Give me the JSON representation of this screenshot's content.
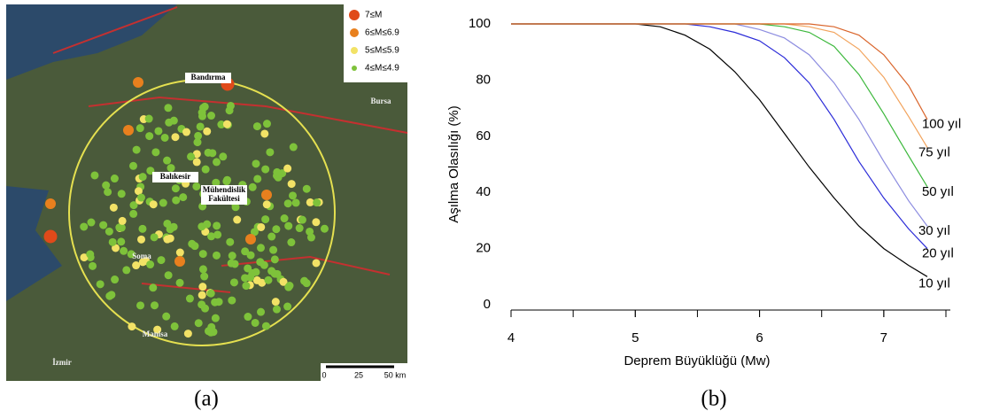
{
  "map": {
    "legend": [
      "7≤M",
      "6≤M≤6.9",
      "5≤M≤5.9",
      "4≤M≤4.9"
    ],
    "legend_colors": [
      "#e04a1a",
      "#e8801e",
      "#f2e266",
      "#7ec23a"
    ],
    "places": [
      "Bandırma",
      "Balıkesir",
      "Mühendislik",
      "Fakültesi",
      "Bursa",
      "Manisa",
      "İzmir",
      "Soma"
    ],
    "scale": [
      "0",
      "25",
      "50 km"
    ]
  },
  "captions": [
    "(a)",
    "(b)"
  ],
  "chart_data": {
    "type": "line",
    "x_label": "Deprem Büyüklüğü (Mw)",
    "y_label": "Aşılma Olasılığı (%)",
    "x": [
      4,
      4.5,
      5,
      5.2,
      5.4,
      5.6,
      5.8,
      6.0,
      6.2,
      6.4,
      6.6,
      6.8,
      7.0,
      7.2,
      7.35
    ],
    "xlim": [
      4,
      7.5
    ],
    "xticks": [
      4,
      5,
      6,
      7
    ],
    "ylim": [
      0,
      100
    ],
    "yticks": [
      0,
      20,
      40,
      60,
      80,
      100
    ],
    "series": [
      {
        "name": "10 yıl",
        "color": "#000000",
        "values": [
          100,
          100,
          100,
          99,
          96,
          91,
          83,
          73,
          61,
          49,
          38,
          28,
          20,
          14,
          10
        ]
      },
      {
        "name": "20 yıl",
        "color": "#2b2bd8",
        "values": [
          100,
          100,
          100,
          100,
          100,
          99,
          97,
          94,
          88,
          79,
          66,
          51,
          38,
          27,
          20
        ]
      },
      {
        "name": "30 yıl",
        "color": "#8c8ce0",
        "values": [
          100,
          100,
          100,
          100,
          100,
          100,
          100,
          98,
          95,
          89,
          79,
          66,
          51,
          37,
          28
        ]
      },
      {
        "name": "50 yıl",
        "color": "#3cb83c",
        "values": [
          100,
          100,
          100,
          100,
          100,
          100,
          100,
          100,
          99,
          97,
          92,
          82,
          68,
          53,
          42
        ]
      },
      {
        "name": "75 yıl",
        "color": "#f2a35c",
        "values": [
          100,
          100,
          100,
          100,
          100,
          100,
          100,
          100,
          100,
          99,
          97,
          91,
          81,
          67,
          56
        ]
      },
      {
        "name": "100 yıl",
        "color": "#d9642a",
        "values": [
          100,
          100,
          100,
          100,
          100,
          100,
          100,
          100,
          100,
          100,
          99,
          96,
          89,
          78,
          66
        ]
      }
    ]
  }
}
